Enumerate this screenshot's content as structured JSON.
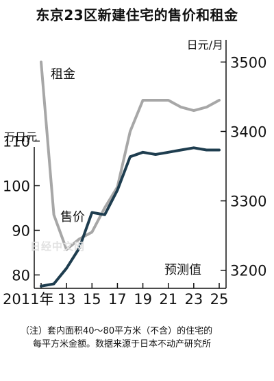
{
  "title": "东京23区新建住宅的售价和租金",
  "watermark": "日经中文网",
  "note": {
    "line1": "（注）套内面积40～80平方米（不含）的住宅的",
    "line2": "每平方米金额。数据来源于日本不动产研究所"
  },
  "chart_data": {
    "type": "line",
    "x_tick_labels": [
      "2011年",
      "13",
      "15",
      "17",
      "19",
      "21",
      "23",
      "25"
    ],
    "x_ticks": [
      2011,
      2013,
      2015,
      2017,
      2019,
      2021,
      2023,
      2025
    ],
    "x_range": [
      2011,
      2025
    ],
    "annotation": "预测值",
    "left_axis": {
      "unit": "万日元",
      "ticks": [
        80,
        90,
        100,
        110
      ],
      "range": [
        77,
        113
      ]
    },
    "right_axis": {
      "unit": "日元/月",
      "ticks": [
        3200,
        3300,
        3400,
        3500
      ],
      "range": [
        3174,
        3532
      ]
    },
    "series": [
      {
        "name": "租金",
        "axis": "right",
        "color": "#a7a7a7",
        "x": [
          2011,
          2012,
          2013,
          2014,
          2015,
          2016,
          2017,
          2018,
          2019,
          2020,
          2021,
          2022,
          2023,
          2024,
          2025
        ],
        "values": [
          3500,
          3280,
          3230,
          3245,
          3255,
          3290,
          3320,
          3400,
          3445,
          3445,
          3445,
          3435,
          3430,
          3435,
          3445
        ]
      },
      {
        "name": "售价",
        "axis": "left",
        "color": "#1e3d4f",
        "x": [
          2011,
          2012,
          2013,
          2014,
          2015,
          2016,
          2017,
          2018,
          2019,
          2020,
          2021,
          2022,
          2023,
          2024,
          2025
        ],
        "values": [
          77.5,
          78,
          81.5,
          86,
          94,
          93.5,
          99,
          106.5,
          107.5,
          107,
          107.5,
          108,
          108.5,
          108,
          108
        ]
      }
    ]
  }
}
